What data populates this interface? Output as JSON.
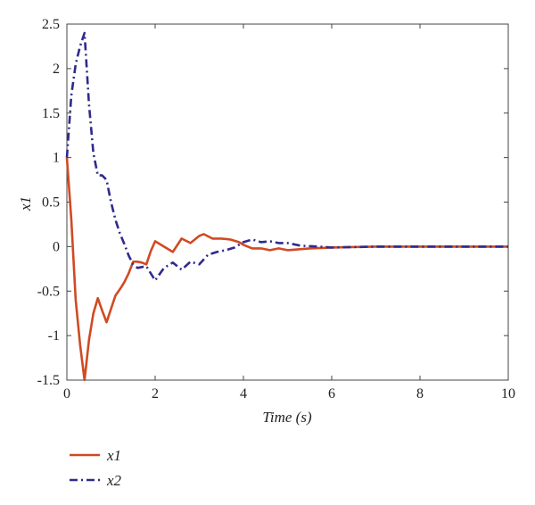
{
  "chart_data": {
    "type": "line",
    "xlabel": "Time (s)",
    "ylabel": "x1",
    "xlim": [
      0,
      10
    ],
    "ylim": [
      -1.5,
      2.5
    ],
    "xticks": [
      0,
      2,
      4,
      6,
      8,
      10
    ],
    "yticks": [
      -1.5,
      -1,
      -0.5,
      0,
      0.5,
      1,
      1.5,
      2,
      2.5
    ],
    "xtick_labels": [
      "0",
      "2",
      "4",
      "6",
      "8",
      "10"
    ],
    "ytick_labels": [
      "-1.5",
      "-1",
      "-0.5",
      "0",
      "0.5",
      "1",
      "1.5",
      "2",
      "2.5"
    ],
    "grid": false,
    "legend_position": "bottom-left",
    "series": [
      {
        "name": "x1",
        "color": "#d04a22",
        "style": "solid",
        "x": [
          0,
          0.1,
          0.2,
          0.3,
          0.4,
          0.5,
          0.6,
          0.7,
          0.8,
          0.9,
          1.0,
          1.1,
          1.2,
          1.3,
          1.4,
          1.5,
          1.6,
          1.7,
          1.8,
          1.9,
          2.0,
          2.2,
          2.4,
          2.6,
          2.8,
          3.0,
          3.1,
          3.3,
          3.5,
          3.7,
          3.9,
          4.0,
          4.2,
          4.4,
          4.6,
          4.8,
          5.0,
          5.5,
          6.0,
          7.0,
          8.0,
          9.0,
          10.0
        ],
        "y": [
          1.0,
          0.3,
          -0.6,
          -1.1,
          -1.5,
          -1.05,
          -0.75,
          -0.58,
          -0.72,
          -0.85,
          -0.7,
          -0.55,
          -0.48,
          -0.4,
          -0.3,
          -0.17,
          -0.17,
          -0.18,
          -0.2,
          -0.05,
          0.06,
          0.0,
          -0.06,
          0.09,
          0.04,
          0.12,
          0.14,
          0.09,
          0.09,
          0.08,
          0.05,
          0.02,
          -0.02,
          -0.02,
          -0.04,
          -0.02,
          -0.04,
          -0.02,
          -0.01,
          0.0,
          0.0,
          0.0,
          0.0
        ]
      },
      {
        "name": "x2",
        "color": "#2f2a8c",
        "style": "dashdot",
        "x": [
          0,
          0.1,
          0.2,
          0.3,
          0.4,
          0.5,
          0.6,
          0.7,
          0.8,
          0.9,
          1.0,
          1.1,
          1.2,
          1.3,
          1.4,
          1.5,
          1.6,
          1.8,
          2.0,
          2.2,
          2.4,
          2.6,
          2.8,
          3.0,
          3.2,
          3.4,
          3.6,
          3.8,
          4.0,
          4.2,
          4.4,
          4.6,
          4.8,
          5.0,
          5.3,
          5.7,
          6.0,
          7.0,
          8.0,
          9.0,
          10.0
        ],
        "y": [
          1.0,
          1.7,
          2.05,
          2.25,
          2.4,
          1.6,
          1.05,
          0.8,
          0.8,
          0.75,
          0.5,
          0.3,
          0.15,
          0.03,
          -0.1,
          -0.2,
          -0.24,
          -0.22,
          -0.38,
          -0.24,
          -0.18,
          -0.26,
          -0.17,
          -0.2,
          -0.09,
          -0.06,
          -0.04,
          -0.01,
          0.05,
          0.08,
          0.05,
          0.06,
          0.04,
          0.04,
          0.01,
          0.0,
          -0.01,
          0.0,
          0.0,
          0.0,
          0.0
        ]
      }
    ]
  }
}
